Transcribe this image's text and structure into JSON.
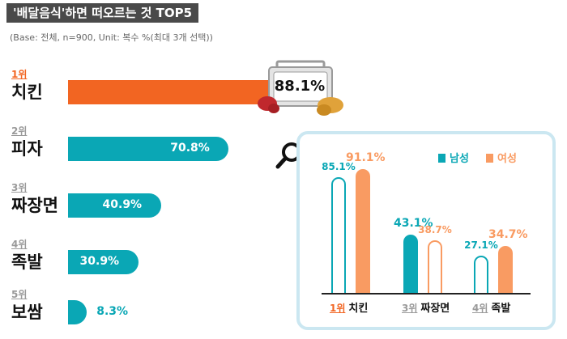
{
  "title": "'배달음식'하면 떠오르는 것 TOP5",
  "base_note": "(Base: 전체, n=900, Unit: 복수 %(최대 3개 선택))",
  "colors": {
    "highlight": "#f26522",
    "teal": "#0aa7b5",
    "female": "#f99b62"
  },
  "chart_data": [
    {
      "type": "bar",
      "orientation": "horizontal",
      "categories": [
        "치킨",
        "피자",
        "짜장면",
        "족발",
        "보쌈"
      ],
      "ranks": [
        "1위",
        "2위",
        "3위",
        "4위",
        "5위"
      ],
      "values": [
        88.1,
        70.8,
        40.9,
        30.9,
        8.3
      ],
      "value_labels": [
        "88.1%",
        "70.8%",
        "40.9%",
        "30.9%",
        "8.3%"
      ],
      "xlim": [
        0,
        100
      ]
    },
    {
      "type": "bar",
      "orientation": "vertical",
      "categories": [
        "치킨",
        "짜장면",
        "족발"
      ],
      "ranks": [
        "1위",
        "3위",
        "4위"
      ],
      "series": [
        {
          "name": "남성",
          "values": [
            85.1,
            43.1,
            27.1
          ],
          "labels": [
            "85.1%",
            "43.1%",
            "27.1%"
          ]
        },
        {
          "name": "여성",
          "values": [
            91.1,
            38.7,
            34.7
          ],
          "labels": [
            "91.1%",
            "38.7%",
            "34.7%"
          ]
        }
      ],
      "ylim": [
        0,
        100
      ],
      "legend": "top-right"
    }
  ]
}
